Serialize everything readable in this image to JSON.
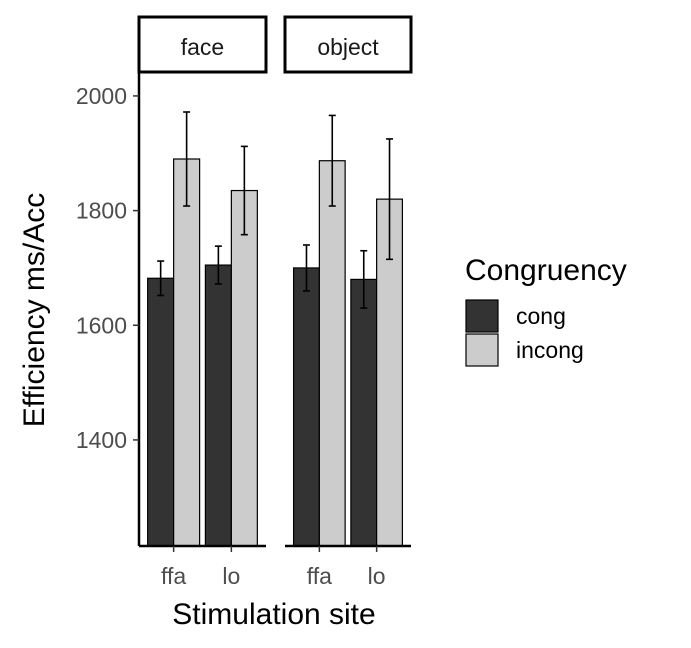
{
  "chart_data": {
    "type": "bar",
    "xlabel": "Stimulation site",
    "ylabel": "Efficiency ms/Acc",
    "ylim": [
      1215,
      2040
    ],
    "yticks": [
      1400,
      1600,
      1800,
      2000
    ],
    "categories": [
      "ffa",
      "lo"
    ],
    "legend": {
      "title": "Congruency",
      "position": "right"
    },
    "series_styles": [
      {
        "name": "cong",
        "color": "#333333"
      },
      {
        "name": "incong",
        "color": "#cccccc"
      }
    ],
    "panels": [
      {
        "label": "face",
        "series": [
          {
            "name": "cong",
            "values": [
              1682,
              1705
            ],
            "err_low": [
              1652,
              1672
            ],
            "err_high": [
              1712,
              1738
            ]
          },
          {
            "name": "incong",
            "values": [
              1890,
              1835
            ],
            "err_low": [
              1808,
              1758
            ],
            "err_high": [
              1972,
              1912
            ]
          }
        ]
      },
      {
        "label": "object",
        "series": [
          {
            "name": "cong",
            "values": [
              1700,
              1680
            ],
            "err_low": [
              1660,
              1630
            ],
            "err_high": [
              1740,
              1730
            ]
          },
          {
            "name": "incong",
            "values": [
              1887,
              1820
            ],
            "err_low": [
              1808,
              1715
            ],
            "err_high": [
              1966,
              1925
            ]
          }
        ]
      }
    ],
    "grid": false
  }
}
